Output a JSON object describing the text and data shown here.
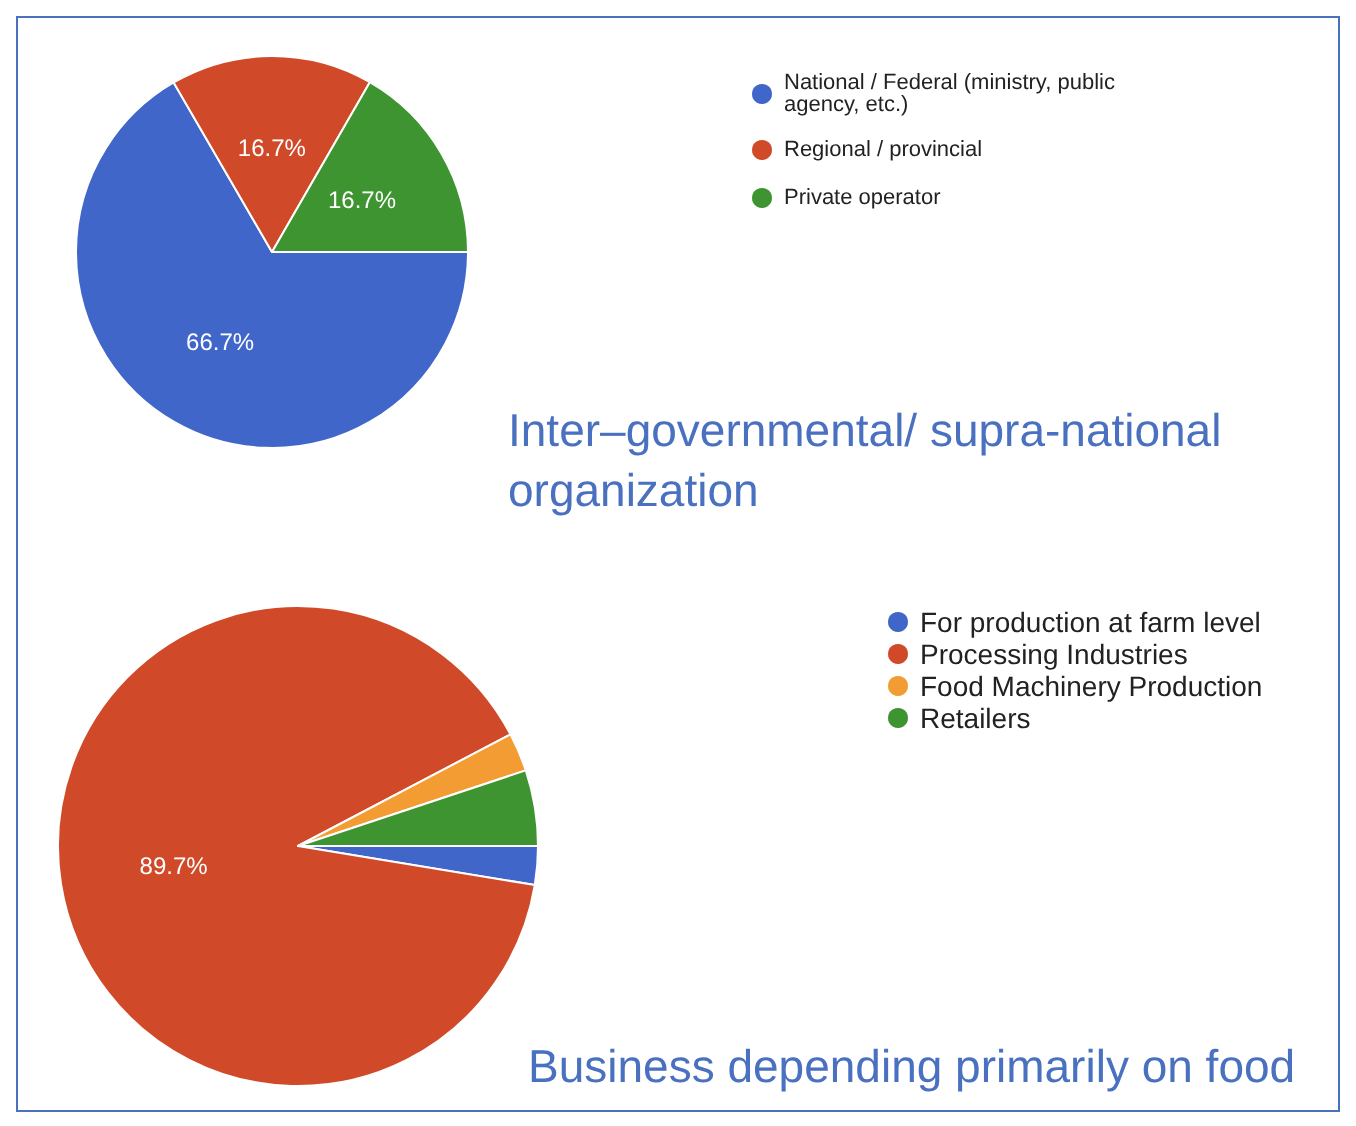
{
  "chart_data": [
    {
      "type": "pie",
      "title": "Inter–governmental/ supra-national organization",
      "categories": [
        "National / Federal (ministry, public agency, etc.)",
        "Regional / provincial",
        "Private operator"
      ],
      "values": [
        66.7,
        16.7,
        16.7
      ],
      "colors": [
        "#3f66c8",
        "#d04a2a",
        "#3f9432"
      ],
      "value_labels": [
        "66.7%",
        "16.7%",
        "16.7%"
      ],
      "legend": "right"
    },
    {
      "type": "pie",
      "title": "Business depending primarily on food",
      "categories": [
        "For production at farm level",
        "Processing Industries",
        "Food Machinery Production",
        "Retailers"
      ],
      "values": [
        2.6,
        89.7,
        2.6,
        5.1
      ],
      "colors": [
        "#3f66c8",
        "#d04a2a",
        "#f39c33",
        "#3f9432"
      ],
      "value_labels": [
        null,
        "89.7%",
        null,
        null
      ],
      "legend": "right"
    }
  ]
}
